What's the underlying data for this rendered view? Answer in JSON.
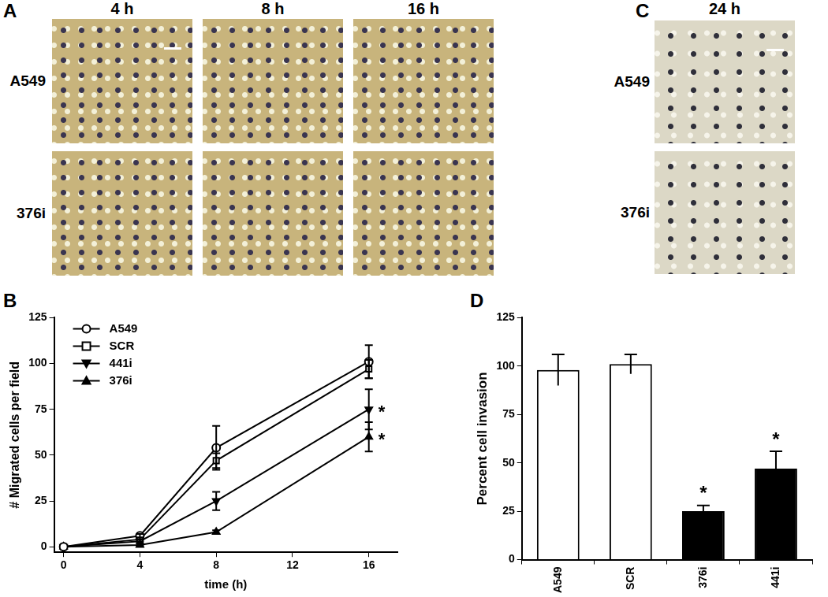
{
  "panels": [
    {
      "panel": "A",
      "columns": [
        "4 h",
        "8 h",
        "16 h"
      ],
      "rows": [
        "A549",
        "376i"
      ]
    },
    {
      "panel": "C",
      "columns": [
        "24 h"
      ],
      "rows": [
        "A549",
        "376i"
      ]
    }
  ],
  "chart_data": [
    {
      "panel": "B",
      "type": "line",
      "x_label": "time (h)",
      "y_label": "# Migrated cells per field",
      "x": [
        0,
        4,
        8,
        16
      ],
      "xlim": [
        -0.5,
        17.5
      ],
      "xticks": [
        0,
        4,
        8,
        12,
        16
      ],
      "ylim": [
        -3,
        125
      ],
      "yticks": [
        0,
        25,
        50,
        75,
        100,
        125
      ],
      "grid": false,
      "legend": "upper left",
      "series": [
        {
          "name": "A549",
          "color": "#000000",
          "marker": "circle-open",
          "values": [
            0,
            6,
            54,
            101
          ],
          "errors": [
            0,
            1,
            12,
            9
          ]
        },
        {
          "name": "SCR",
          "color": "#000000",
          "marker": "square-open",
          "values": [
            0,
            4,
            47,
            97
          ],
          "errors": [
            0,
            1,
            4,
            5
          ]
        },
        {
          "name": "441i",
          "color": "#000000",
          "marker": "triangle-down",
          "values": [
            0,
            3,
            25,
            75
          ],
          "errors": [
            0,
            1,
            5,
            11
          ],
          "significance": "*"
        },
        {
          "name": "376i",
          "color": "#000000",
          "marker": "triangle-up",
          "values": [
            0,
            1,
            8,
            60
          ],
          "errors": [
            0,
            0.5,
            1,
            8
          ],
          "significance": "*"
        }
      ]
    },
    {
      "panel": "D",
      "type": "bar",
      "y_label": "Percent cell invasion",
      "categories": [
        "A549",
        "SCR",
        "376i",
        "441i"
      ],
      "values": [
        98,
        101,
        25,
        47
      ],
      "errors": [
        8,
        5,
        3,
        9
      ],
      "colors": [
        "#ffffff",
        "#ffffff",
        "#000000",
        "#000000"
      ],
      "significance": [
        null,
        null,
        "*",
        "*"
      ],
      "ylim": [
        0,
        125
      ],
      "yticks": [
        0,
        25,
        50,
        75,
        100,
        125
      ],
      "grid": false
    }
  ]
}
